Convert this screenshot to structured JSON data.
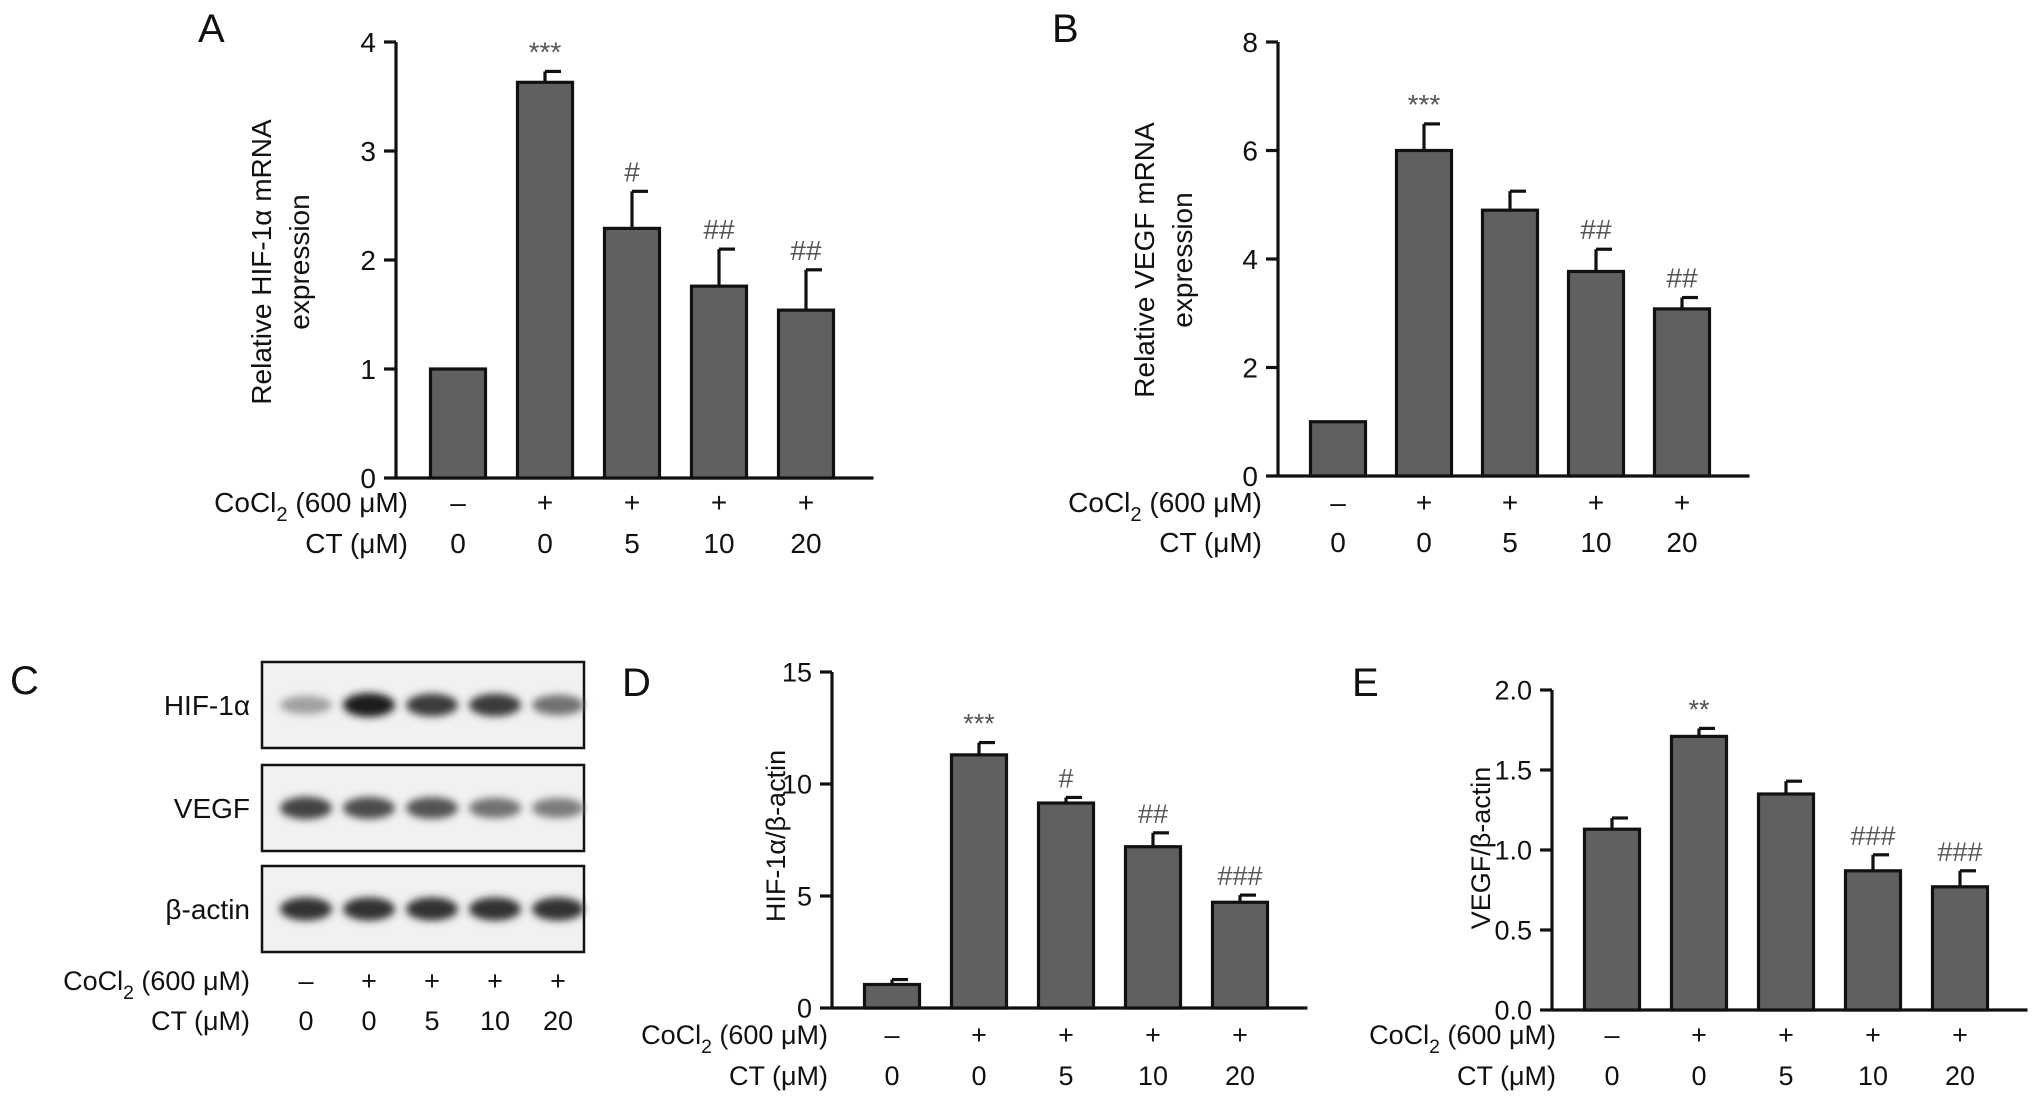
{
  "chart_data": [
    {
      "type": "bar",
      "panel": "A",
      "ylabel": [
        "Relative HIF-1α mRNA",
        "expression"
      ],
      "ylim": [
        0,
        4
      ],
      "yticks": [
        "0",
        "1",
        "2",
        "3",
        "4"
      ],
      "values": [
        1.0,
        3.63,
        2.29,
        1.76,
        1.54
      ],
      "errors": [
        0,
        0.1,
        0.34,
        0.34,
        0.37
      ],
      "significance": [
        "",
        "***",
        "#",
        "##",
        "##"
      ],
      "conditions": [
        {
          "label_main": "CoCl",
          "label_sub": "2",
          "label_tail": " (600 μM)",
          "values": [
            "–",
            "+",
            "+",
            "+",
            "+"
          ]
        },
        {
          "label": "CT (μM)",
          "values": [
            "0",
            "0",
            "5",
            "10",
            "20"
          ]
        }
      ]
    },
    {
      "type": "bar",
      "panel": "B",
      "ylabel": [
        "Relative VEGF mRNA",
        "expression"
      ],
      "ylim": [
        0,
        8
      ],
      "yticks": [
        "0",
        "2",
        "4",
        "6",
        "8"
      ],
      "values": [
        1.0,
        6.0,
        4.9,
        3.77,
        3.08
      ],
      "errors": [
        0,
        0.49,
        0.35,
        0.41,
        0.21
      ],
      "significance": [
        "",
        "***",
        "",
        "##",
        "##"
      ],
      "conditions": [
        {
          "label_main": "CoCl",
          "label_sub": "2",
          "label_tail": " (600 μM)",
          "values": [
            "–",
            "+",
            "+",
            "+",
            "+"
          ]
        },
        {
          "label": "CT (μM)",
          "values": [
            "0",
            "0",
            "5",
            "10",
            "20"
          ]
        }
      ]
    },
    {
      "type": "bar",
      "panel": "D",
      "ylabel": [
        "HIF-1α/β-actin"
      ],
      "ylim": [
        0,
        15
      ],
      "yticks": [
        "0",
        "5",
        "10",
        "15"
      ],
      "values": [
        1.05,
        11.3,
        9.15,
        7.2,
        4.72
      ],
      "errors": [
        0.22,
        0.55,
        0.25,
        0.62,
        0.32
      ],
      "significance": [
        "",
        "***",
        "#",
        "##",
        "###"
      ],
      "conditions": [
        {
          "label_main": "CoCl",
          "label_sub": "2",
          "label_tail": " (600 μM)",
          "values": [
            "–",
            "+",
            "+",
            "+",
            "+"
          ]
        },
        {
          "label": "CT (μM)",
          "values": [
            "0",
            "0",
            "5",
            "10",
            "20"
          ]
        }
      ]
    },
    {
      "type": "bar",
      "panel": "E",
      "ylabel": [
        "VEGF/β-actin"
      ],
      "ylim": [
        0,
        2.0
      ],
      "yticks": [
        "0.0",
        "0.5",
        "1.0",
        "1.5",
        "2.0"
      ],
      "values": [
        1.13,
        1.71,
        1.35,
        0.87,
        0.77
      ],
      "errors": [
        0.07,
        0.05,
        0.08,
        0.1,
        0.1
      ],
      "significance": [
        "",
        "**",
        "",
        "###",
        "###"
      ],
      "conditions": [
        {
          "label_main": "CoCl",
          "label_sub": "2",
          "label_tail": " (600 μM)",
          "values": [
            "–",
            "+",
            "+",
            "+",
            "+"
          ]
        },
        {
          "label": "CT (μM)",
          "values": [
            "0",
            "0",
            "5",
            "10",
            "20"
          ]
        }
      ]
    }
  ],
  "western_blot": {
    "panel": "C",
    "rows": [
      {
        "label": "HIF-1α",
        "intensities": [
          0.3,
          1.0,
          0.85,
          0.85,
          0.55
        ]
      },
      {
        "label": "VEGF",
        "intensities": [
          0.8,
          0.75,
          0.72,
          0.55,
          0.5
        ]
      },
      {
        "label": "β-actin",
        "intensities": [
          0.9,
          0.9,
          0.9,
          0.9,
          0.9
        ]
      }
    ],
    "conditions": [
      {
        "label_main": "CoCl",
        "label_sub": "2",
        "label_tail": " (600 μM)",
        "values": [
          "–",
          "+",
          "+",
          "+",
          "+"
        ]
      },
      {
        "label": "CT (μM)",
        "values": [
          "0",
          "0",
          "5",
          "10",
          "20"
        ]
      }
    ]
  },
  "panel_letters": [
    "A",
    "B",
    "C",
    "D",
    "E"
  ]
}
